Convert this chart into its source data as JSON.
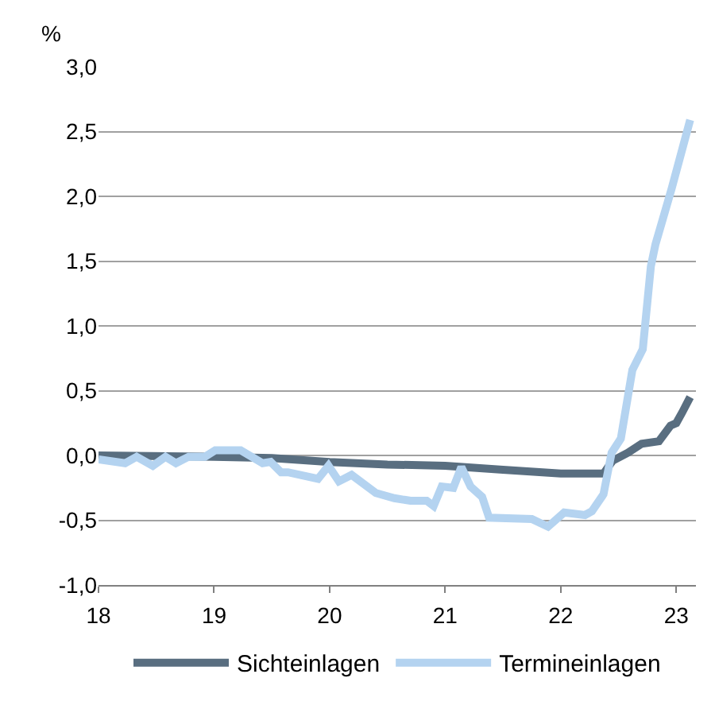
{
  "chart_data": {
    "type": "line",
    "ylabel": "%",
    "xlim": [
      18,
      23.17
    ],
    "xticks": [
      18,
      19,
      20,
      21,
      22,
      23
    ],
    "ylim": [
      -1.0,
      3.0
    ],
    "yticks": [
      {
        "value": -1.0,
        "label": "-1,0"
      },
      {
        "value": -0.5,
        "label": "-0,5"
      },
      {
        "value": 0.0,
        "label": "0,0"
      },
      {
        "value": 0.5,
        "label": "0,5"
      },
      {
        "value": 1.0,
        "label": "1,0"
      },
      {
        "value": 1.5,
        "label": "1,5"
      },
      {
        "value": 2.0,
        "label": "2,0"
      },
      {
        "value": 2.5,
        "label": "2,5"
      },
      {
        "value": 3.0,
        "label": "3,0"
      }
    ],
    "grid": "y",
    "legend": "bottom",
    "marker": "none",
    "line_style": "solid",
    "series": [
      {
        "name": "Sichteinlagen",
        "color": "#596e80",
        "x": [
          18.0,
          19.0,
          19.5,
          20.0,
          20.5,
          21.0,
          21.5,
          22.0,
          22.37,
          22.45,
          22.58,
          22.7,
          22.85,
          22.95,
          23.0,
          23.05,
          23.12
        ],
        "values": [
          0.0,
          -0.01,
          -0.02,
          -0.05,
          -0.07,
          -0.08,
          -0.11,
          -0.14,
          -0.14,
          -0.04,
          0.02,
          0.09,
          0.11,
          0.23,
          0.25,
          0.33,
          0.45
        ]
      },
      {
        "name": "Termineinlagen",
        "color": "#b4d3f0",
        "x": [
          18.0,
          18.23,
          18.33,
          18.47,
          18.58,
          18.67,
          18.78,
          18.92,
          19.01,
          19.23,
          19.42,
          19.49,
          19.58,
          19.64,
          19.9,
          19.99,
          20.08,
          20.19,
          20.4,
          20.56,
          20.7,
          20.84,
          20.9,
          20.97,
          21.07,
          21.14,
          21.22,
          21.32,
          21.38,
          21.75,
          21.89,
          22.03,
          22.21,
          22.27,
          22.37,
          22.44,
          22.52,
          22.62,
          22.71,
          22.78,
          22.82,
          22.96,
          23.12
        ],
        "values": [
          -0.03,
          -0.06,
          -0.01,
          -0.08,
          -0.01,
          -0.06,
          -0.01,
          -0.01,
          0.04,
          0.04,
          -0.06,
          -0.05,
          -0.13,
          -0.13,
          -0.18,
          -0.08,
          -0.2,
          -0.15,
          -0.29,
          -0.33,
          -0.35,
          -0.35,
          -0.39,
          -0.24,
          -0.25,
          -0.09,
          -0.24,
          -0.32,
          -0.48,
          -0.49,
          -0.55,
          -0.44,
          -0.46,
          -0.43,
          -0.3,
          0.02,
          0.13,
          0.66,
          0.82,
          1.46,
          1.63,
          2.06,
          2.59
        ]
      }
    ]
  }
}
